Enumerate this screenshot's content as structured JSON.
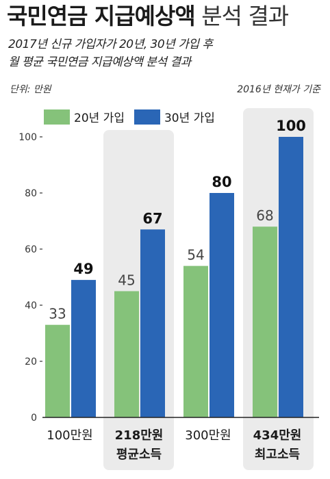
{
  "title": {
    "bold": "국민연금 지급예상액",
    "light": "분석 결과"
  },
  "subtitle": {
    "line1": "2017년 신규 가입자가 20년, 30년 가입 후",
    "line2": "월 평균 국민연금 지급예상액 분석 결과"
  },
  "unit_note": "단위: 만원",
  "basis_note": "2016년 현재가 기준",
  "colors": {
    "series_20": "#85c27a",
    "series_30": "#2a66b6",
    "highlight_bg": "#ebebeb",
    "axis": "#333333"
  },
  "chart_data": {
    "type": "bar",
    "title": "국민연금 지급예상액 분석 결과",
    "categories": [
      {
        "line1": "100만원",
        "line2": "",
        "bold": false,
        "highlight": false
      },
      {
        "line1": "218만원",
        "line2": "평균소득",
        "bold": true,
        "highlight": true
      },
      {
        "line1": "300만원",
        "line2": "",
        "bold": false,
        "highlight": false
      },
      {
        "line1": "434만원",
        "line2": "최고소득",
        "bold": true,
        "highlight": true
      }
    ],
    "series": [
      {
        "name": "20년 가입",
        "values": [
          33,
          45,
          54,
          68
        ]
      },
      {
        "name": "30년 가입",
        "values": [
          49,
          67,
          80,
          100
        ]
      }
    ],
    "ylim": [
      0,
      100
    ],
    "yticks": [
      0,
      20,
      40,
      60,
      80,
      100
    ],
    "ylabel": "단위: 만원",
    "legend": "top-left",
    "grid": false
  }
}
